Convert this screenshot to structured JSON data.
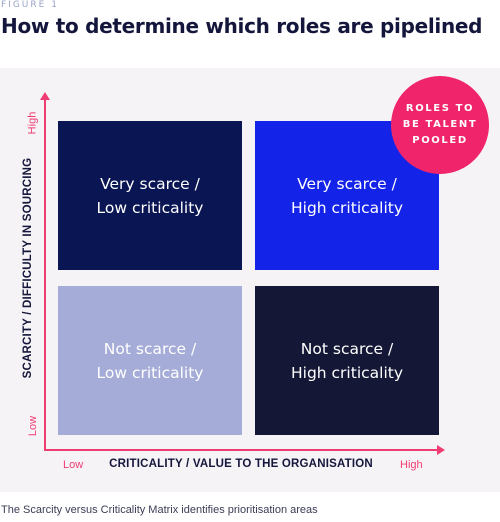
{
  "figure_label": "FIGURE 1",
  "title": "How to determine which roles are pipelined",
  "axes": {
    "y_title": "SCARCITY / DIFFICULTY IN SOURCING",
    "x_title": "CRITICALITY / VALUE TO THE ORGANISATION",
    "y_high": "High",
    "y_low": "Low",
    "x_low": "Low",
    "x_high": "High"
  },
  "quadrants": [
    {
      "line1": "Very scarce /",
      "line2": "Low criticality",
      "color": "#0a1553"
    },
    {
      "line1": "Very scarce /",
      "line2": "High criticality",
      "color": "#1423e8"
    },
    {
      "line1": "Not scarce /",
      "line2": "Low criticality",
      "color": "#a5acd7"
    },
    {
      "line1": "Not scarce /",
      "line2": "High criticality",
      "color": "#141836"
    }
  ],
  "badge": {
    "line1": "ROLES TO",
    "line2": "BE TALENT",
    "line3": "POOLED",
    "color": "#f0246a"
  },
  "caption": "The Scarcity versus Criticality Matrix identifies prioritisation areas",
  "colors": {
    "accent": "#f03c73",
    "title_text": "#14163b",
    "panel_bg": "#f6f3f6"
  }
}
